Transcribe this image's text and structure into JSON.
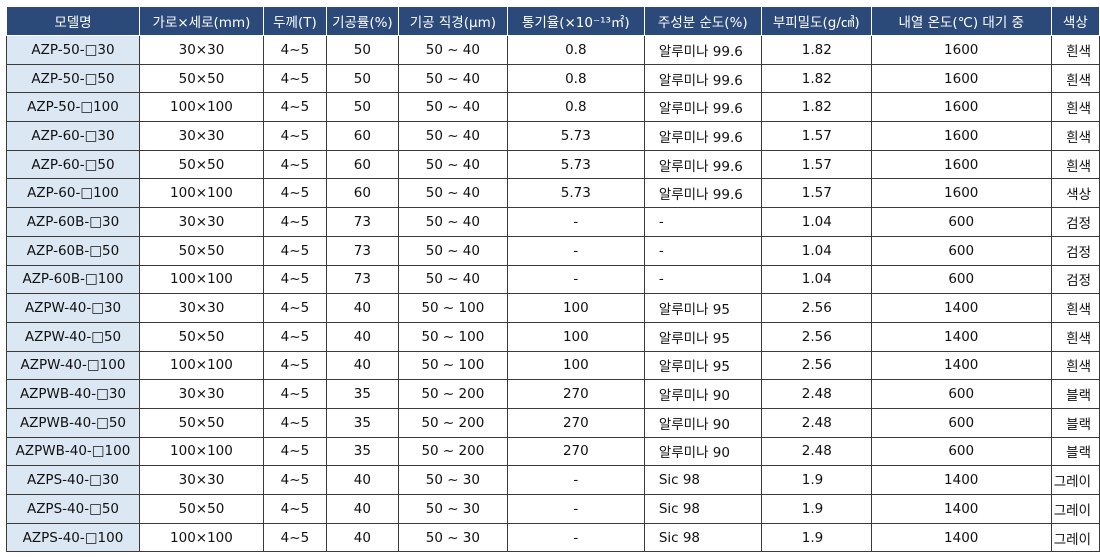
{
  "table": {
    "headers": [
      "모델명",
      "가로×세로(mm)",
      "두께(T)",
      "기공률(%)",
      "기공 직경(μm)",
      "통기율(×10⁻¹³㎡)",
      "주성분 순도(%)",
      "부피밀도(g/㎤)",
      "내열 온도(℃) 대기 중",
      "색상"
    ],
    "rows": [
      [
        "AZP-50-□30",
        "30×30",
        "4~5",
        "50",
        "50 ~ 40",
        "0.8",
        "알루미나 99.6",
        "1.82",
        "1600",
        "흰색"
      ],
      [
        "AZP-50-□50",
        "50×50",
        "4~5",
        "50",
        "50 ~ 40",
        "0.8",
        "알루미나 99.6",
        "1.82",
        "1600",
        "흰색"
      ],
      [
        "AZP-50-□100",
        "100×100",
        "4~5",
        "50",
        "50 ~ 40",
        "0.8",
        "알루미나 99.6",
        "1.82",
        "1600",
        "흰색"
      ],
      [
        "AZP-60-□30",
        "30×30",
        "4~5",
        "60",
        "50 ~ 40",
        "5.73",
        "알루미나 99.6",
        "1.57",
        "1600",
        "흰색"
      ],
      [
        "AZP-60-□50",
        "50×50",
        "4~5",
        "60",
        "50 ~ 40",
        "5.73",
        "알루미나 99.6",
        "1.57",
        "1600",
        "흰색"
      ],
      [
        "AZP-60-□100",
        "100×100",
        "4~5",
        "60",
        "50 ~ 40",
        "5.73",
        "알루미나 99.6",
        "1.57",
        "1600",
        "색상"
      ],
      [
        "AZP-60B-□30",
        "30×30",
        "4~5",
        "73",
        "50 ~ 40",
        "-",
        "-",
        "1.04",
        "600",
        "검정"
      ],
      [
        "AZP-60B-□50",
        "50×50",
        "4~5",
        "73",
        "50 ~ 40",
        "-",
        "-",
        "1.04",
        "600",
        "검정"
      ],
      [
        "AZP-60B-□100",
        "100×100",
        "4~5",
        "73",
        "50 ~ 40",
        "-",
        "-",
        "1.04",
        "600",
        "검정"
      ],
      [
        "AZPW-40-□30",
        "30×30",
        "4~5",
        "40",
        "50 ~ 100",
        "100",
        "알루미나 95",
        "2.56",
        "1400",
        "흰색"
      ],
      [
        "AZPW-40-□50",
        "50×50",
        "4~5",
        "40",
        "50 ~ 100",
        "100",
        "알루미나 95",
        "2.56",
        "1400",
        "흰색"
      ],
      [
        "AZPW-40-□100",
        "100×100",
        "4~5",
        "40",
        "50 ~ 100",
        "100",
        "알루미나 95",
        "2.56",
        "1400",
        "흰색"
      ],
      [
        "AZPWB-40-□30",
        "30×30",
        "4~5",
        "35",
        "50 ~ 200",
        "270",
        "알루미나 90",
        "2.48",
        "600",
        "블랙"
      ],
      [
        "AZPWB-40-□50",
        "50×50",
        "4~5",
        "35",
        "50 ~ 200",
        "270",
        "알루미나 90",
        "2.48",
        "600",
        "블랙"
      ],
      [
        "AZPWB-40-□100",
        "100×100",
        "4~5",
        "35",
        "50 ~ 200",
        "270",
        "알루미나 90",
        "2.48",
        "600",
        "블랙"
      ],
      [
        "AZPS-40-□30",
        "30×30",
        "4~5",
        "40",
        "50 ~ 30",
        "-",
        "Sic 98",
        "1.9",
        "1400",
        "그레이"
      ],
      [
        "AZPS-40-□50",
        "50×50",
        "4~5",
        "40",
        "50 ~ 30",
        "-",
        "Sic 98",
        "1.9",
        "1400",
        "그레이"
      ],
      [
        "AZPS-40-□100",
        "100×100",
        "4~5",
        "40",
        "50 ~ 30",
        "-",
        "Sic 98",
        "1.9",
        "1400",
        "그레이"
      ]
    ]
  },
  "colors": {
    "header_bg": "#2b4a7a",
    "header_text": "#ffffff",
    "model_cell_bg": "#dce7f4",
    "grid_line": "#3a3a3a"
  }
}
